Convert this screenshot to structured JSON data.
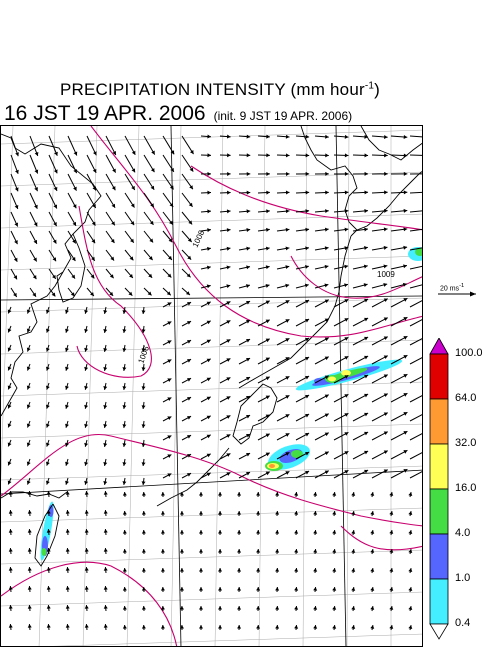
{
  "title": {
    "main_text": "PRECIPITATION INTENSITY (mm hour",
    "main_sup": "-1",
    "main_close": ")",
    "time_text": "16 JST 19 APR. 2006",
    "init_text": "(init. 9 JST 19 APR. 2006)"
  },
  "map": {
    "isobar_labels": [
      "1008",
      "1006",
      "1009"
    ],
    "colors": {
      "coast": "#000000",
      "grid": "#aaaaaa",
      "isobar": "#c8006e",
      "wind_arrow": "#000000"
    }
  },
  "reference_vector": {
    "label": "20 ms",
    "label_sup": "-1"
  },
  "colorbar": {
    "levels": [
      "100.0",
      "64.0",
      "32.0",
      "16.0",
      "4.0",
      "1.0",
      "0.4"
    ],
    "colors": [
      "#cc00cc",
      "#e00000",
      "#ff9a33",
      "#ffff55",
      "#44dd44",
      "#5566ff",
      "#44eeff",
      "#ffffff"
    ]
  }
}
